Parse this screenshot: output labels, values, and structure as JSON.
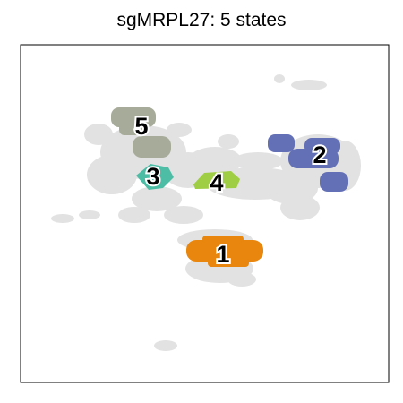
{
  "chart_data": {
    "type": "scatter",
    "title": "sgMRPL27: 5 states",
    "xlabel": "",
    "ylabel": "",
    "grid": false,
    "background_color": "#e2e2e2",
    "states": [
      {
        "name": "1",
        "color": "#e8860d"
      },
      {
        "name": "2",
        "color": "#6470b6"
      },
      {
        "name": "3",
        "color": "#4ebda6"
      },
      {
        "name": "4",
        "color": "#9fcd43"
      },
      {
        "name": "5",
        "color": "#a7ab99"
      }
    ]
  }
}
